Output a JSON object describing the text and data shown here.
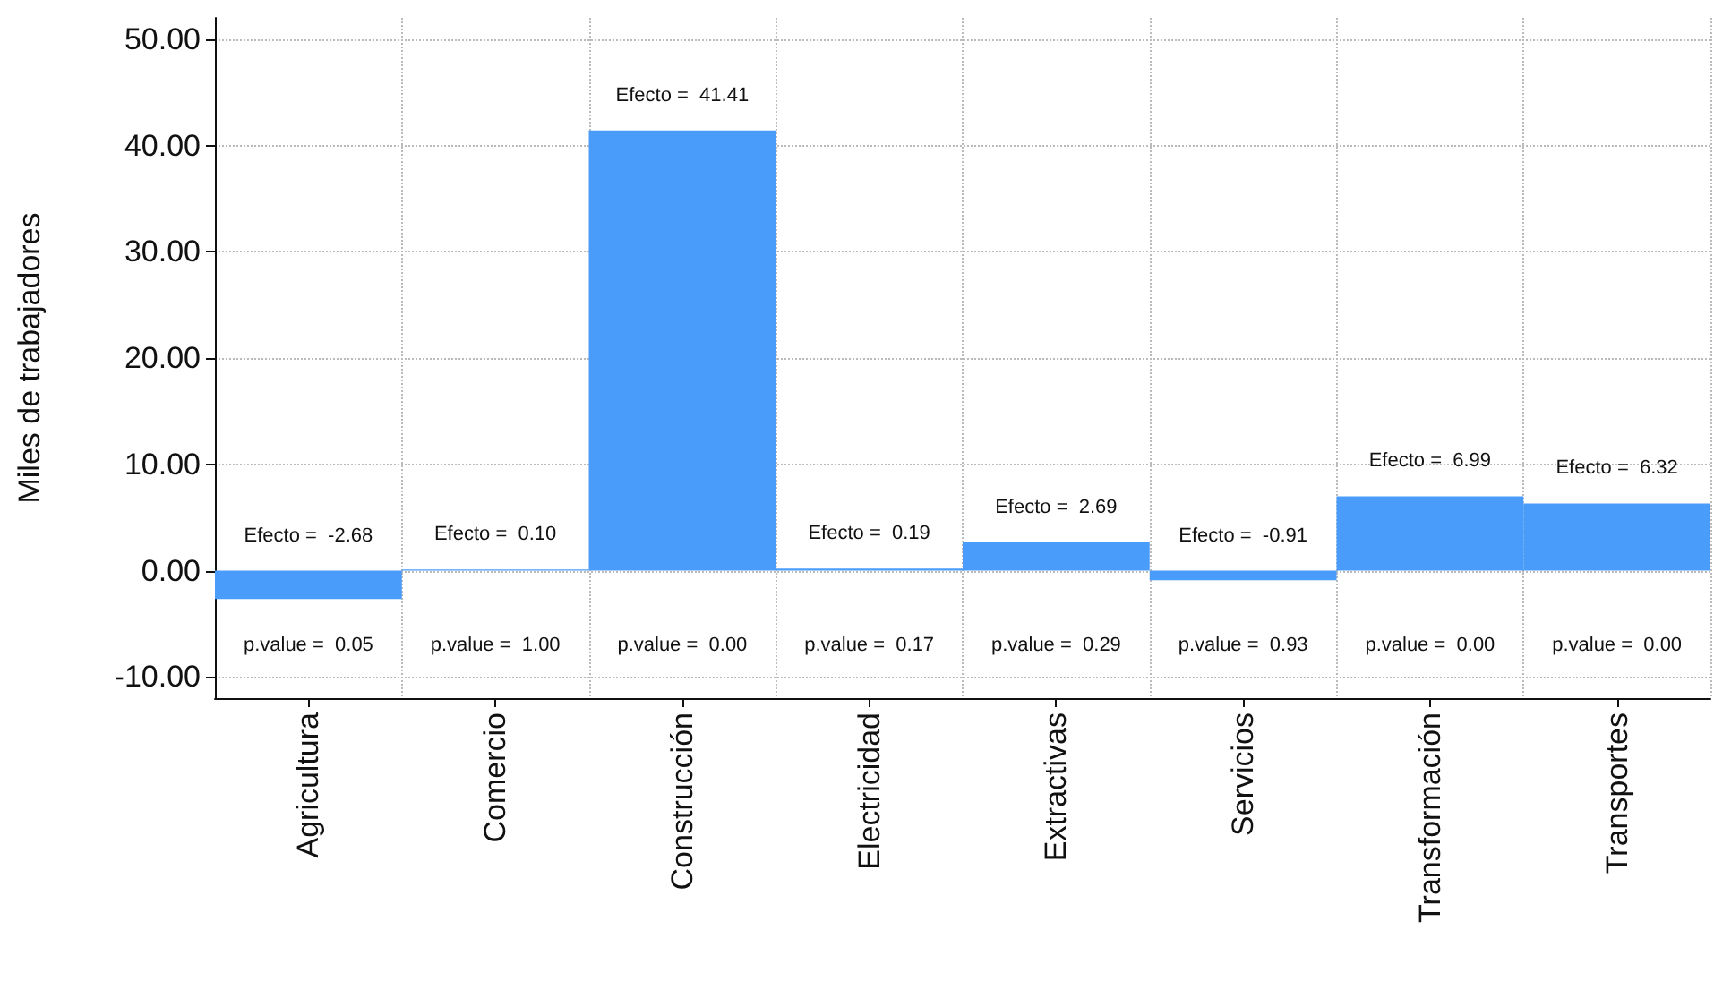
{
  "chart_data": {
    "type": "bar",
    "ylabel": "Miles de trabajadores",
    "categories": [
      "Agricultura",
      "Comercio",
      "Construcción",
      "Electricidad",
      "Extractivas",
      "Servicios",
      "Transformación",
      "Transportes"
    ],
    "values": [
      -2.68,
      0.1,
      41.41,
      0.19,
      2.69,
      -0.91,
      6.99,
      6.32
    ],
    "color": "#4a9cfa",
    "value_labels": [
      "Efecto =  -2.68",
      "Efecto =  0.10",
      "Efecto =  41.41",
      "Efecto =  0.19",
      "Efecto =  2.69",
      "Efecto =  -0.91",
      "Efecto =  6.99",
      "Efecto =  6.32"
    ],
    "annotations": [
      "p.value =  0.05",
      "p.value =  1.00",
      "p.value =  0.00",
      "p.value =  0.17",
      "p.value =  0.29",
      "p.value =  0.93",
      "p.value =  0.00",
      "p.value =  0.00"
    ],
    "ylim": [
      -12,
      52
    ],
    "yticks": [
      {
        "value": -10,
        "label": "-10.00"
      },
      {
        "value": 0,
        "label": "0.00"
      },
      {
        "value": 10,
        "label": "10.00"
      },
      {
        "value": 20,
        "label": "20.00"
      },
      {
        "value": 30,
        "label": "30.00"
      },
      {
        "value": 40,
        "label": "40.00"
      },
      {
        "value": 50,
        "label": "50.00"
      }
    ],
    "grid": true
  }
}
